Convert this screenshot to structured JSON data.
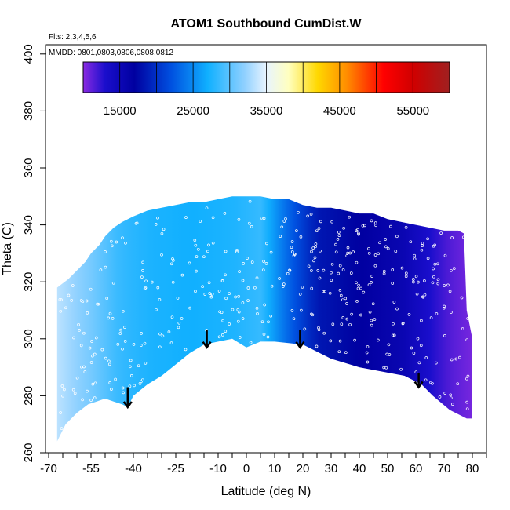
{
  "chart_data": {
    "type": "heatmap",
    "title": "ATOM1 Southbound CumDist.W",
    "flights_note": "Flts: 2,3,4,5,6",
    "dates_note": "MMDD: 0801,0803,0806,0808,0812",
    "xlabel": "Latitude (deg N)",
    "ylabel": "Theta (C)",
    "xlim": [
      -70,
      85
    ],
    "ylim": [
      260,
      405
    ],
    "x_ticks_major": [
      -70,
      -55,
      -40,
      -25,
      -10,
      0,
      10,
      20,
      30,
      40,
      50,
      60,
      70,
      80
    ],
    "x_tick_labels": [
      "-70",
      "-55",
      "-40",
      "-25",
      "-10",
      "0",
      "10",
      "20",
      "30",
      "40",
      "50",
      "60",
      "70",
      "80"
    ],
    "x_ticks_minor": [
      -65,
      -60,
      -50,
      -45,
      -35,
      -30,
      -20,
      -15,
      -5,
      5,
      15,
      25,
      35,
      45,
      55,
      65,
      75,
      85
    ],
    "y_ticks": [
      260,
      280,
      300,
      320,
      340,
      360,
      380,
      400
    ],
    "y_tick_labels": [
      "260",
      "280",
      "300",
      "320",
      "340",
      "360",
      "380",
      "400"
    ],
    "colorbar": {
      "range": [
        10000,
        60000
      ],
      "tick_values": [
        15000,
        25000,
        35000,
        45000,
        55000
      ],
      "tick_labels": [
        "15000",
        "25000",
        "35000",
        "45000",
        "55000"
      ],
      "divisions": [
        20000,
        30000,
        40000,
        50000
      ],
      "stops": [
        {
          "value": 10000,
          "color": "#8a2be2"
        },
        {
          "value": 13000,
          "color": "#1a0ecc"
        },
        {
          "value": 17000,
          "color": "#0000a0"
        },
        {
          "value": 22000,
          "color": "#0050e0"
        },
        {
          "value": 27000,
          "color": "#10b0ff"
        },
        {
          "value": 32000,
          "color": "#8fd0ff"
        },
        {
          "value": 35000,
          "color": "#e8f4ff"
        },
        {
          "value": 38000,
          "color": "#ffffc0"
        },
        {
          "value": 42000,
          "color": "#ffd800"
        },
        {
          "value": 46000,
          "color": "#ff8c00"
        },
        {
          "value": 51000,
          "color": "#ff0000"
        },
        {
          "value": 55000,
          "color": "#d00000"
        },
        {
          "value": 60000,
          "color": "#a02020"
        }
      ]
    },
    "upper_boundary": [
      [
        -67,
        318
      ],
      [
        -63,
        321
      ],
      [
        -60,
        324
      ],
      [
        -57,
        327
      ],
      [
        -55,
        330
      ],
      [
        -52,
        333
      ],
      [
        -50,
        336
      ],
      [
        -47,
        339
      ],
      [
        -44,
        341
      ],
      [
        -40,
        343
      ],
      [
        -35,
        345
      ],
      [
        -30,
        346
      ],
      [
        -25,
        347
      ],
      [
        -20,
        348
      ],
      [
        -15,
        348
      ],
      [
        -10,
        349
      ],
      [
        -5,
        350
      ],
      [
        0,
        350
      ],
      [
        5,
        350
      ],
      [
        10,
        349
      ],
      [
        15,
        349
      ],
      [
        20,
        347
      ],
      [
        25,
        346
      ],
      [
        30,
        346
      ],
      [
        35,
        345
      ],
      [
        40,
        344
      ],
      [
        45,
        344
      ],
      [
        50,
        342
      ],
      [
        55,
        341
      ],
      [
        60,
        340
      ],
      [
        65,
        339
      ],
      [
        70,
        338
      ],
      [
        75,
        338
      ],
      [
        77,
        337
      ],
      [
        78,
        310
      ],
      [
        80,
        300
      ],
      [
        80,
        282
      ]
    ],
    "lower_boundary": [
      [
        80,
        272
      ],
      [
        78,
        272
      ],
      [
        72,
        275
      ],
      [
        66,
        280
      ],
      [
        62,
        284
      ],
      [
        56,
        287
      ],
      [
        40,
        290
      ],
      [
        30,
        293
      ],
      [
        20,
        298
      ],
      [
        10,
        299
      ],
      [
        5,
        299
      ],
      [
        0,
        297
      ],
      [
        -5,
        300
      ],
      [
        -10,
        299
      ],
      [
        -15,
        298
      ],
      [
        -20,
        295
      ],
      [
        -25,
        291
      ],
      [
        -30,
        287
      ],
      [
        -35,
        284
      ],
      [
        -40,
        280
      ],
      [
        -42,
        276
      ],
      [
        -44,
        277
      ],
      [
        -47,
        278
      ],
      [
        -50,
        279
      ],
      [
        -53,
        278
      ],
      [
        -56,
        277
      ],
      [
        -60,
        274
      ],
      [
        -64,
        270
      ],
      [
        -67,
        264
      ]
    ],
    "value_by_latitude": [
      [
        -67,
        33500
      ],
      [
        -55,
        31000
      ],
      [
        -45,
        28500
      ],
      [
        -35,
        27500
      ],
      [
        -20,
        27000
      ],
      [
        -5,
        27500
      ],
      [
        5,
        28500
      ],
      [
        15,
        23000
      ],
      [
        25,
        18500
      ],
      [
        40,
        17000
      ],
      [
        55,
        15500
      ],
      [
        65,
        13000
      ],
      [
        72,
        11500
      ],
      [
        80,
        10500
      ]
    ],
    "arrows": [
      {
        "lat": -42,
        "theta_top": 283,
        "theta_tip": 276
      },
      {
        "lat": -14,
        "theta_top": 303,
        "theta_tip": 297
      },
      {
        "lat": 19,
        "theta_top": 303,
        "theta_tip": 297
      },
      {
        "lat": 61,
        "theta_top": 288,
        "theta_tip": 283
      }
    ]
  }
}
